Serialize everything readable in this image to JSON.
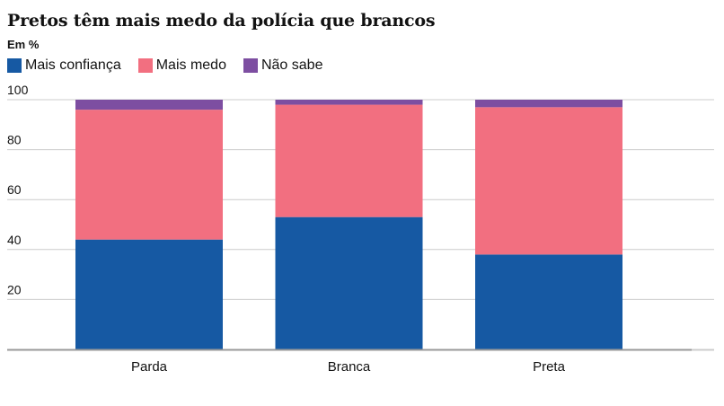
{
  "chart_data": {
    "type": "bar",
    "stacked": true,
    "title": "Pretos têm mais medo da polícia que brancos",
    "subtitle": "Em %",
    "xlabel": "",
    "ylabel": "",
    "ylim": [
      0,
      100
    ],
    "yticks": [
      20,
      40,
      60,
      80,
      100
    ],
    "grid": true,
    "legend_position": "top-left",
    "categories": [
      "Parda",
      "Branca",
      "Preta"
    ],
    "series": [
      {
        "name": "Mais confiança",
        "color": "#1659a3",
        "values": [
          44,
          53,
          38
        ]
      },
      {
        "name": "Mais medo",
        "color": "#f26f80",
        "values": [
          52,
          45,
          59
        ]
      },
      {
        "name": "Não sabe",
        "color": "#7d4ea1",
        "values": [
          4,
          2,
          3
        ]
      }
    ]
  }
}
